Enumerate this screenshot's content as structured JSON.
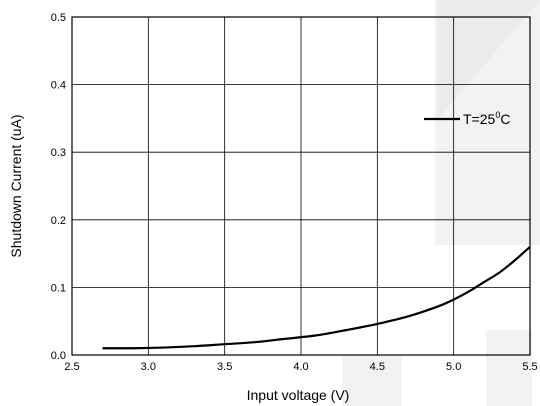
{
  "chart_data": {
    "type": "line",
    "xlabel": "Input voltage (V)",
    "ylabel": "Shutdown Current (uA)",
    "xlim": [
      2.5,
      5.5
    ],
    "ylim": [
      0.0,
      0.5
    ],
    "grid": true,
    "legend_placement": "right",
    "x_ticks": [
      "2.5",
      "3.0",
      "3.5",
      "4.0",
      "4.5",
      "5.0",
      "5.5"
    ],
    "y_ticks": [
      "0.0",
      "0.1",
      "0.2",
      "0.3",
      "0.4",
      "0.5"
    ],
    "series": [
      {
        "legend_main": "T=25",
        "legend_sup": "0",
        "legend_tail": "C",
        "color": "#000000",
        "x": [
          2.7,
          2.9,
          3.1,
          3.3,
          3.5,
          3.7,
          3.9,
          4.1,
          4.3,
          4.5,
          4.7,
          4.9,
          5.0,
          5.1,
          5.2,
          5.3,
          5.4,
          5.5
        ],
        "y": [
          0.01,
          0.01,
          0.011,
          0.013,
          0.016,
          0.019,
          0.024,
          0.029,
          0.037,
          0.046,
          0.057,
          0.072,
          0.082,
          0.094,
          0.108,
          0.122,
          0.14,
          0.16
        ]
      }
    ]
  }
}
